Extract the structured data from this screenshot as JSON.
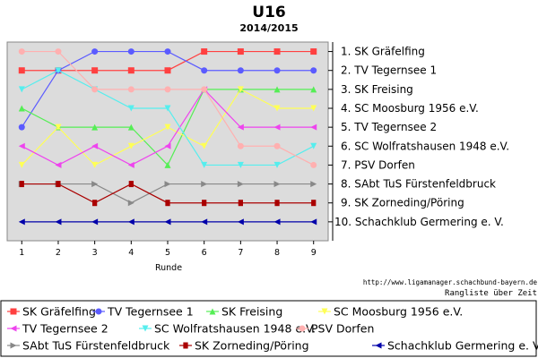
{
  "chart_data": {
    "type": "line",
    "title": "U16",
    "subtitle": "2014/2015",
    "xlabel": "Runde",
    "ylabel": "",
    "x": [
      1,
      2,
      3,
      4,
      5,
      6,
      7,
      8,
      9
    ],
    "xlim": [
      0.6,
      9.4
    ],
    "ylim": [
      11,
      0.5
    ],
    "ranks": [
      1,
      2,
      3,
      4,
      5,
      6,
      7,
      8,
      9,
      10
    ],
    "final_standings": [
      "1. SK Gräfelfing",
      "2. TV Tegernsee 1",
      "3. SK Freising",
      "4. SC Moosburg 1956 e.V.",
      "5. TV Tegernsee 2",
      "6. SC Wolfratshausen 1948 e.V.",
      "7. PSV Dorfen",
      "8. SAbt TuS Fürstenfeldbruck",
      "9. SK Zorneding/Pöring",
      "10. Schachklub Germering e. V."
    ],
    "series": [
      {
        "name": "SK Gräfelfing",
        "color": "#ff4040",
        "marker": "square",
        "values": [
          2,
          2,
          2,
          2,
          2,
          1,
          1,
          1,
          1
        ]
      },
      {
        "name": "TV Tegernsee 1",
        "color": "#5b5bff",
        "marker": "circle",
        "values": [
          5,
          2,
          1,
          1,
          1,
          2,
          2,
          2,
          2
        ]
      },
      {
        "name": "SK Freising",
        "color": "#55ee55",
        "marker": "triangle-up",
        "values": [
          4,
          5,
          5,
          5,
          7,
          3,
          3,
          3,
          3
        ]
      },
      {
        "name": "SC Moosburg 1956 e.V.",
        "color": "#ffff55",
        "marker": "triangle-down",
        "values": [
          7,
          5,
          7,
          6,
          5,
          6,
          3,
          4,
          4
        ]
      },
      {
        "name": "TV Tegernsee 2",
        "color": "#ee44ee",
        "marker": "triangle-left",
        "values": [
          6,
          7,
          6,
          7,
          6,
          3,
          5,
          5,
          5
        ]
      },
      {
        "name": "SC Wolfratshausen 1948 e.V.",
        "color": "#55eeee",
        "marker": "triangle-down",
        "values": [
          3,
          2,
          3,
          4,
          4,
          7,
          7,
          7,
          6
        ]
      },
      {
        "name": "PSV Dorfen",
        "color": "#ffb0b0",
        "marker": "circle",
        "values": [
          1,
          1,
          3,
          3,
          3,
          3,
          6,
          6,
          7
        ]
      },
      {
        "name": "SAbt TuS Fürstenfeldbruck",
        "color": "#888888",
        "marker": "triangle-right",
        "values": [
          8,
          8,
          8,
          9,
          8,
          8,
          8,
          8,
          8
        ]
      },
      {
        "name": "SK Zorneding/Pöring",
        "color": "#aa0000",
        "marker": "bar",
        "values": [
          8,
          8,
          9,
          8,
          9,
          9,
          9,
          9,
          9
        ]
      },
      {
        "name": "Schachklub Germering e. V.",
        "color": "#0000aa",
        "marker": "triangle-left",
        "values": [
          10,
          10,
          10,
          10,
          10,
          10,
          10,
          10,
          10
        ]
      }
    ],
    "grid": false,
    "legend_position": "bottom"
  },
  "source_url": "http://www.ligamanager.schachbund-bayern.de",
  "footer_caption": "Rangliste über Zeit"
}
